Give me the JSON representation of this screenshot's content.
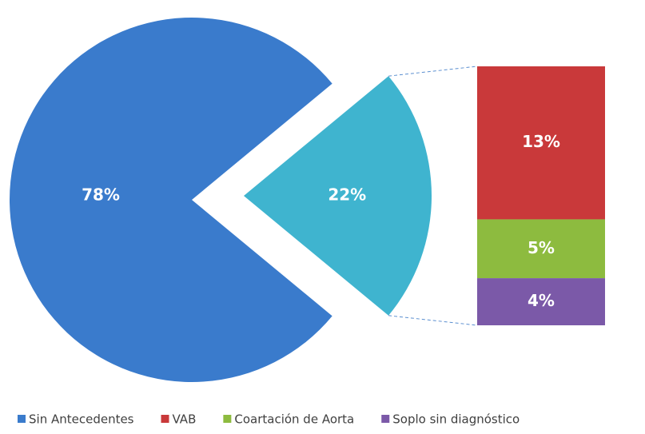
{
  "chart_data": {
    "type": "bar-of-pie",
    "pie": {
      "categories": [
        "Sin Antecedentes",
        null
      ],
      "values": [
        78,
        22
      ],
      "value_labels": [
        "78%",
        "22%"
      ],
      "colors": [
        "#3a7bcc",
        "#3fb4cf"
      ]
    },
    "bar": {
      "categories": [
        "VAB",
        "Coartación de Aorta",
        "Soplo sin diagnóstico"
      ],
      "values": [
        13,
        5,
        4
      ],
      "value_labels": [
        "13%",
        "5%",
        "4%"
      ],
      "colors": [
        "#c9393a",
        "#8dbb3f",
        "#7b59a8"
      ]
    },
    "legend": "bottom"
  }
}
